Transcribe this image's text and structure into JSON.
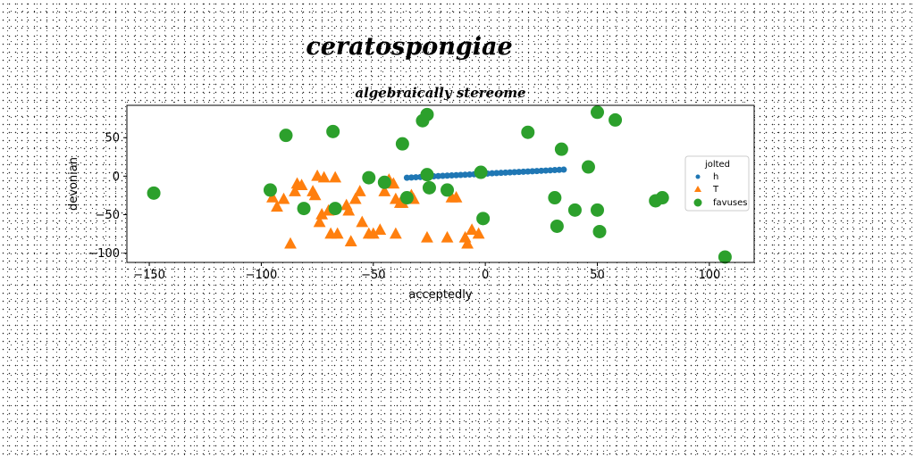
{
  "chart_data": {
    "type": "scatter",
    "suptitle": "ceratospongiae",
    "title": "algebraically stereome",
    "xlabel": "acceptedly",
    "ylabel": "devonian",
    "xlim": [
      -160,
      120
    ],
    "ylim": [
      -112,
      92
    ],
    "xticks": [
      -150,
      -100,
      -50,
      0,
      50,
      100
    ],
    "yticks": [
      50,
      0,
      -50,
      -100
    ],
    "grid": false,
    "legend": {
      "title": "jolted",
      "placement": "right"
    },
    "series": [
      {
        "name": "h",
        "marker": "circle-small",
        "color": "#1f77b4",
        "x": [
          -35,
          -33,
          -31,
          -29,
          -27,
          -25,
          -23,
          -21,
          -19,
          -17,
          -15,
          -13,
          -11,
          -9,
          -7,
          -5,
          -3,
          -1,
          1,
          3,
          5,
          7,
          9,
          11,
          13,
          15,
          17,
          19,
          21,
          23,
          25,
          27,
          29,
          31,
          33,
          35
        ],
        "y": [
          -2,
          -1.7,
          -1.4,
          -1.1,
          -0.8,
          -0.5,
          -0.2,
          0.1,
          0.4,
          0.7,
          1,
          1.3,
          1.6,
          1.9,
          2.2,
          2.5,
          2.8,
          3.1,
          3.4,
          3.7,
          4,
          4.3,
          4.6,
          4.9,
          5.2,
          5.5,
          5.8,
          6.1,
          6.4,
          6.7,
          7,
          7.3,
          7.6,
          7.9,
          8.2,
          8.5
        ]
      },
      {
        "name": "T",
        "marker": "triangle",
        "color": "#ff7f0e",
        "x": [
          -95,
          -93,
          -90,
          -87,
          -85,
          -84,
          -82,
          -77,
          -76,
          -75,
          -74,
          -73,
          -72,
          -70,
          -69,
          -67,
          -66,
          -62,
          -61,
          -60,
          -58,
          -56,
          -55,
          -52,
          -50,
          -47,
          -45,
          -43,
          -41,
          -40,
          -40,
          -38,
          -37,
          -33,
          -32,
          -26,
          -17,
          -15,
          -13,
          -9,
          -8,
          -6,
          -3
        ],
        "y": [
          -28,
          -40,
          -30,
          -88,
          -20,
          -10,
          -12,
          -20,
          -25,
          0,
          -60,
          -50,
          -2,
          -45,
          -75,
          -2,
          -75,
          -38,
          -45,
          -85,
          -30,
          -20,
          -60,
          -75,
          -75,
          -70,
          -20,
          -5,
          -10,
          -30,
          -75,
          -35,
          -35,
          -25,
          -30,
          -80,
          -80,
          -28,
          -28,
          -80,
          -88,
          -70,
          -75
        ]
      },
      {
        "name": "favuses",
        "marker": "circle",
        "color": "#2ca02c",
        "x": [
          -148,
          -96,
          -89,
          -81,
          -68,
          -67,
          -52,
          -45,
          -37,
          -35,
          -28,
          -26,
          -26,
          -25,
          -17,
          -2,
          -1,
          19,
          31,
          32,
          34,
          40,
          46,
          50,
          50,
          51,
          58,
          76,
          79,
          107
        ],
        "y": [
          -22,
          -18,
          53,
          -42,
          58,
          -42,
          -2,
          -8,
          42,
          -28,
          72,
          80,
          2,
          -15,
          -18,
          5,
          -55,
          57,
          -28,
          -65,
          35,
          -44,
          12,
          83,
          -44,
          -72,
          73,
          -32,
          -28,
          -105
        ]
      }
    ]
  }
}
